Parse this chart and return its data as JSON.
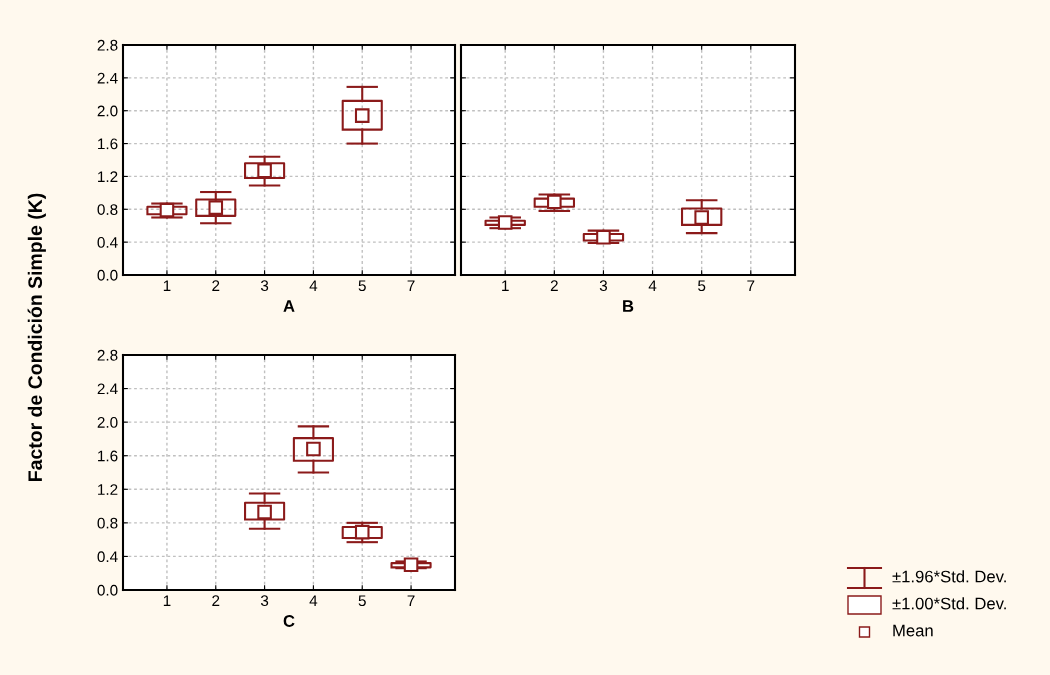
{
  "chart_data": [
    {
      "type": "box",
      "xlabel": "A",
      "ylabel": "Factor de Condición Simple (K)",
      "categories": [
        "1",
        "2",
        "3",
        "4",
        "5",
        "7"
      ],
      "color": "#8b1a1a",
      "boxes": [
        {
          "low": 0.7,
          "q1": 0.74,
          "median": 0.79,
          "q3": 0.83,
          "high": 0.87
        },
        {
          "low": 0.63,
          "q1": 0.72,
          "median": 0.82,
          "q3": 0.92,
          "high": 1.01
        },
        {
          "low": 1.09,
          "q1": 1.18,
          "median": 1.27,
          "q3": 1.36,
          "high": 1.44
        },
        null,
        {
          "low": 1.6,
          "q1": 1.77,
          "median": 1.94,
          "q3": 2.12,
          "high": 2.29
        },
        null
      ],
      "ylim": [
        0,
        2.8
      ],
      "yticks": [
        {
          "value": 0,
          "label": "0.0"
        },
        {
          "value": 0.4,
          "label": "0.4"
        },
        {
          "value": 0.8,
          "label": "0.8"
        },
        {
          "value": 1.2,
          "label": "1.2"
        },
        {
          "value": 1.6,
          "label": "1.6"
        },
        {
          "value": 2.0,
          "label": "2.0"
        },
        {
          "value": 2.4,
          "label": "2.4"
        },
        {
          "value": 2.8,
          "label": "2.8"
        }
      ],
      "grid": true
    },
    {
      "type": "box",
      "xlabel": "B",
      "categories": [
        "1",
        "2",
        "3",
        "4",
        "5",
        "7"
      ],
      "color": "#8b1a1a",
      "boxes": [
        {
          "low": 0.57,
          "q1": 0.61,
          "median": 0.64,
          "q3": 0.66,
          "high": 0.7
        },
        {
          "low": 0.78,
          "q1": 0.83,
          "median": 0.89,
          "q3": 0.93,
          "high": 0.98
        },
        {
          "low": 0.39,
          "q1": 0.42,
          "median": 0.46,
          "q3": 0.5,
          "high": 0.54
        },
        null,
        {
          "low": 0.51,
          "q1": 0.61,
          "median": 0.7,
          "q3": 0.81,
          "high": 0.91
        },
        null
      ],
      "ylim": [
        0,
        2.8
      ],
      "yticks": [
        {
          "value": 0,
          "label": null
        },
        {
          "value": 0.4,
          "label": null
        },
        {
          "value": 0.8,
          "label": null
        },
        {
          "value": 1.2,
          "label": null
        },
        {
          "value": 1.6,
          "label": null
        },
        {
          "value": 2.0,
          "label": null
        },
        {
          "value": 2.4,
          "label": null
        },
        {
          "value": 2.8,
          "label": null
        }
      ],
      "grid": true,
      "tick_labels": "x"
    },
    {
      "type": "box",
      "xlabel": "C",
      "categories": [
        "1",
        "2",
        "3",
        "4",
        "5",
        "7"
      ],
      "color": "#8b1a1a",
      "boxes": [
        null,
        null,
        {
          "low": 0.73,
          "q1": 0.84,
          "median": 0.93,
          "q3": 1.04,
          "high": 1.15
        },
        {
          "low": 1.4,
          "q1": 1.54,
          "median": 1.68,
          "q3": 1.81,
          "high": 1.95
        },
        {
          "low": 0.57,
          "q1": 0.62,
          "median": 0.69,
          "q3": 0.75,
          "high": 0.8
        },
        {
          "low": 0.26,
          "q1": 0.27,
          "median": 0.3,
          "q3": 0.32,
          "high": 0.34
        }
      ],
      "ylim": [
        0,
        2.8
      ],
      "yticks": [
        {
          "value": 0,
          "label": "0.0"
        },
        {
          "value": 0.4,
          "label": "0.4"
        },
        {
          "value": 0.8,
          "label": "0.8"
        },
        {
          "value": 1.2,
          "label": "1.2"
        },
        {
          "value": 1.6,
          "label": "1.6"
        },
        {
          "value": 2.0,
          "label": "2.0"
        },
        {
          "value": 2.4,
          "label": "2.4"
        },
        {
          "value": 2.8,
          "label": "2.8"
        }
      ],
      "grid": true,
      "annotations": [
        "±1.96*Std. Dev.",
        "±1.00*Std. Dev.",
        "Mean"
      ]
    }
  ]
}
